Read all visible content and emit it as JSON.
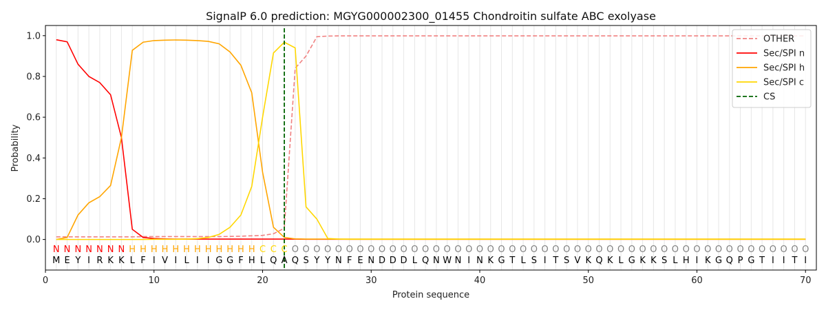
{
  "chart_data": {
    "type": "line",
    "title": "SignalP 6.0 prediction: MGYG000002300_01455 Chondroitin sulfate ABC exolyase",
    "xlabel": "Protein sequence",
    "ylabel": "Probability",
    "xlim": [
      0,
      71
    ],
    "ylim": [
      -0.15,
      1.05
    ],
    "xticks": [
      0,
      10,
      20,
      30,
      40,
      50,
      60,
      70
    ],
    "yticks": [
      0.0,
      0.2,
      0.4,
      0.6,
      0.8,
      1.0
    ],
    "xtick_labels": [
      "0",
      "10",
      "20",
      "30",
      "40",
      "50",
      "60",
      "70"
    ],
    "ytick_labels": [
      "0.0",
      "0.2",
      "0.4",
      "0.6",
      "0.8",
      "1.0"
    ],
    "grid": "vertical lines at each residue",
    "legend_position": "top-right",
    "sequence": [
      "M",
      "E",
      "Y",
      "I",
      "R",
      "K",
      "K",
      "L",
      "F",
      "I",
      "V",
      "I",
      "L",
      "I",
      "I",
      "G",
      "G",
      "F",
      "H",
      "L",
      "Q",
      "A",
      "Q",
      "S",
      "Y",
      "Y",
      "N",
      "F",
      "E",
      "N",
      "D",
      "D",
      "D",
      "L",
      "Q",
      "N",
      "W",
      "N",
      "I",
      "N",
      "K",
      "G",
      "T",
      "L",
      "S",
      "I",
      "T",
      "S",
      "V",
      "K",
      "Q",
      "K",
      "L",
      "G",
      "K",
      "K",
      "S",
      "L",
      "H",
      "I",
      "K",
      "G",
      "Q",
      "P",
      "G",
      "T",
      "I",
      "I",
      "T",
      "I"
    ],
    "region_labels": [
      "N",
      "N",
      "N",
      "N",
      "N",
      "N",
      "N",
      "H",
      "H",
      "H",
      "H",
      "H",
      "H",
      "H",
      "H",
      "H",
      "H",
      "H",
      "H",
      "C",
      "C",
      "C",
      "O",
      "O",
      "O",
      "O",
      "O",
      "O",
      "O",
      "O",
      "O",
      "O",
      "O",
      "O",
      "O",
      "O",
      "O",
      "O",
      "O",
      "O",
      "O",
      "O",
      "O",
      "O",
      "O",
      "O",
      "O",
      "O",
      "O",
      "O",
      "O",
      "O",
      "O",
      "O",
      "O",
      "O",
      "O",
      "O",
      "O",
      "O",
      "O",
      "O",
      "O",
      "O",
      "O",
      "O",
      "O",
      "O",
      "O",
      "O"
    ],
    "region_colors": {
      "N": "#ff0000",
      "H": "#ffa500",
      "C": "#ffd700",
      "O": "#808080"
    },
    "cleavage_site": 22,
    "series": [
      {
        "name": "OTHER",
        "color": "#f08080",
        "style": "dashed",
        "values": [
          0.013,
          0.013,
          0.013,
          0.013,
          0.013,
          0.013,
          0.013,
          0.013,
          0.014,
          0.014,
          0.014,
          0.014,
          0.014,
          0.014,
          0.014,
          0.014,
          0.015,
          0.016,
          0.018,
          0.02,
          0.028,
          0.055,
          0.84,
          0.9,
          0.995,
          0.998,
          0.999,
          0.999,
          0.999,
          0.999,
          0.999,
          0.999,
          0.999,
          0.999,
          0.999,
          0.999,
          0.999,
          0.999,
          0.999,
          0.999,
          0.999,
          0.999,
          0.999,
          0.999,
          0.999,
          0.999,
          0.999,
          0.999,
          0.999,
          0.999,
          0.999,
          0.999,
          0.999,
          0.999,
          0.999,
          0.999,
          0.999,
          0.999,
          0.999,
          0.999,
          0.999,
          0.999,
          0.999,
          0.999,
          0.999,
          0.999,
          0.999,
          0.999,
          0.999,
          0.999
        ]
      },
      {
        "name": "Sec/SPI n",
        "color": "#ff0000",
        "style": "solid",
        "values": [
          0.98,
          0.97,
          0.86,
          0.8,
          0.77,
          0.71,
          0.5,
          0.05,
          0.01,
          0.005,
          0.003,
          0.002,
          0.002,
          0.002,
          0.002,
          0.002,
          0.002,
          0.002,
          0.002,
          0.002,
          0.002,
          0.002,
          0.002,
          0.001,
          0.001,
          0.001,
          0.001,
          0.001,
          0.001,
          0.001,
          0.001,
          0.001,
          0.001,
          0.001,
          0.001,
          0.001,
          0.001,
          0.001,
          0.001,
          0.001,
          0.001,
          0.001,
          0.001,
          0.001,
          0.001,
          0.001,
          0.001,
          0.001,
          0.001,
          0.001,
          0.001,
          0.001,
          0.001,
          0.001,
          0.001,
          0.001,
          0.001,
          0.001,
          0.001,
          0.001,
          0.001,
          0.001,
          0.001,
          0.001,
          0.001,
          0.001,
          0.001,
          0.001,
          0.001,
          0.001
        ]
      },
      {
        "name": "Sec/SPI h",
        "color": "#ffa500",
        "style": "solid",
        "values": [
          0.0,
          0.01,
          0.12,
          0.18,
          0.21,
          0.265,
          0.5,
          0.928,
          0.968,
          0.976,
          0.978,
          0.979,
          0.978,
          0.976,
          0.972,
          0.96,
          0.92,
          0.855,
          0.72,
          0.33,
          0.06,
          0.01,
          0.003,
          0.002,
          0.002,
          0.002,
          0.002,
          0.002,
          0.002,
          0.002,
          0.002,
          0.002,
          0.002,
          0.002,
          0.002,
          0.002,
          0.002,
          0.002,
          0.002,
          0.002,
          0.002,
          0.002,
          0.002,
          0.002,
          0.002,
          0.002,
          0.002,
          0.002,
          0.002,
          0.002,
          0.002,
          0.002,
          0.002,
          0.002,
          0.002,
          0.002,
          0.002,
          0.002,
          0.002,
          0.002,
          0.002,
          0.002,
          0.002,
          0.002,
          0.002,
          0.002,
          0.002,
          0.002,
          0.002,
          0.002
        ]
      },
      {
        "name": "Sec/SPI c",
        "color": "#ffd700",
        "style": "solid",
        "values": [
          0.0,
          0.0,
          0.0,
          0.0,
          0.0,
          0.0,
          0.0,
          0.0,
          0.0,
          0.001,
          0.001,
          0.001,
          0.002,
          0.004,
          0.01,
          0.025,
          0.06,
          0.12,
          0.26,
          0.6,
          0.915,
          0.968,
          0.94,
          0.16,
          0.1,
          0.005,
          0.002,
          0.001,
          0.001,
          0.001,
          0.001,
          0.001,
          0.001,
          0.001,
          0.001,
          0.001,
          0.001,
          0.001,
          0.001,
          0.001,
          0.001,
          0.001,
          0.001,
          0.001,
          0.001,
          0.001,
          0.001,
          0.001,
          0.001,
          0.001,
          0.001,
          0.001,
          0.001,
          0.001,
          0.001,
          0.001,
          0.001,
          0.001,
          0.001,
          0.001,
          0.001,
          0.001,
          0.001,
          0.001,
          0.001,
          0.001,
          0.001,
          0.001,
          0.001,
          0.001
        ]
      },
      {
        "name": "CS",
        "color": "#006400",
        "style": "dashed",
        "values": []
      }
    ]
  }
}
